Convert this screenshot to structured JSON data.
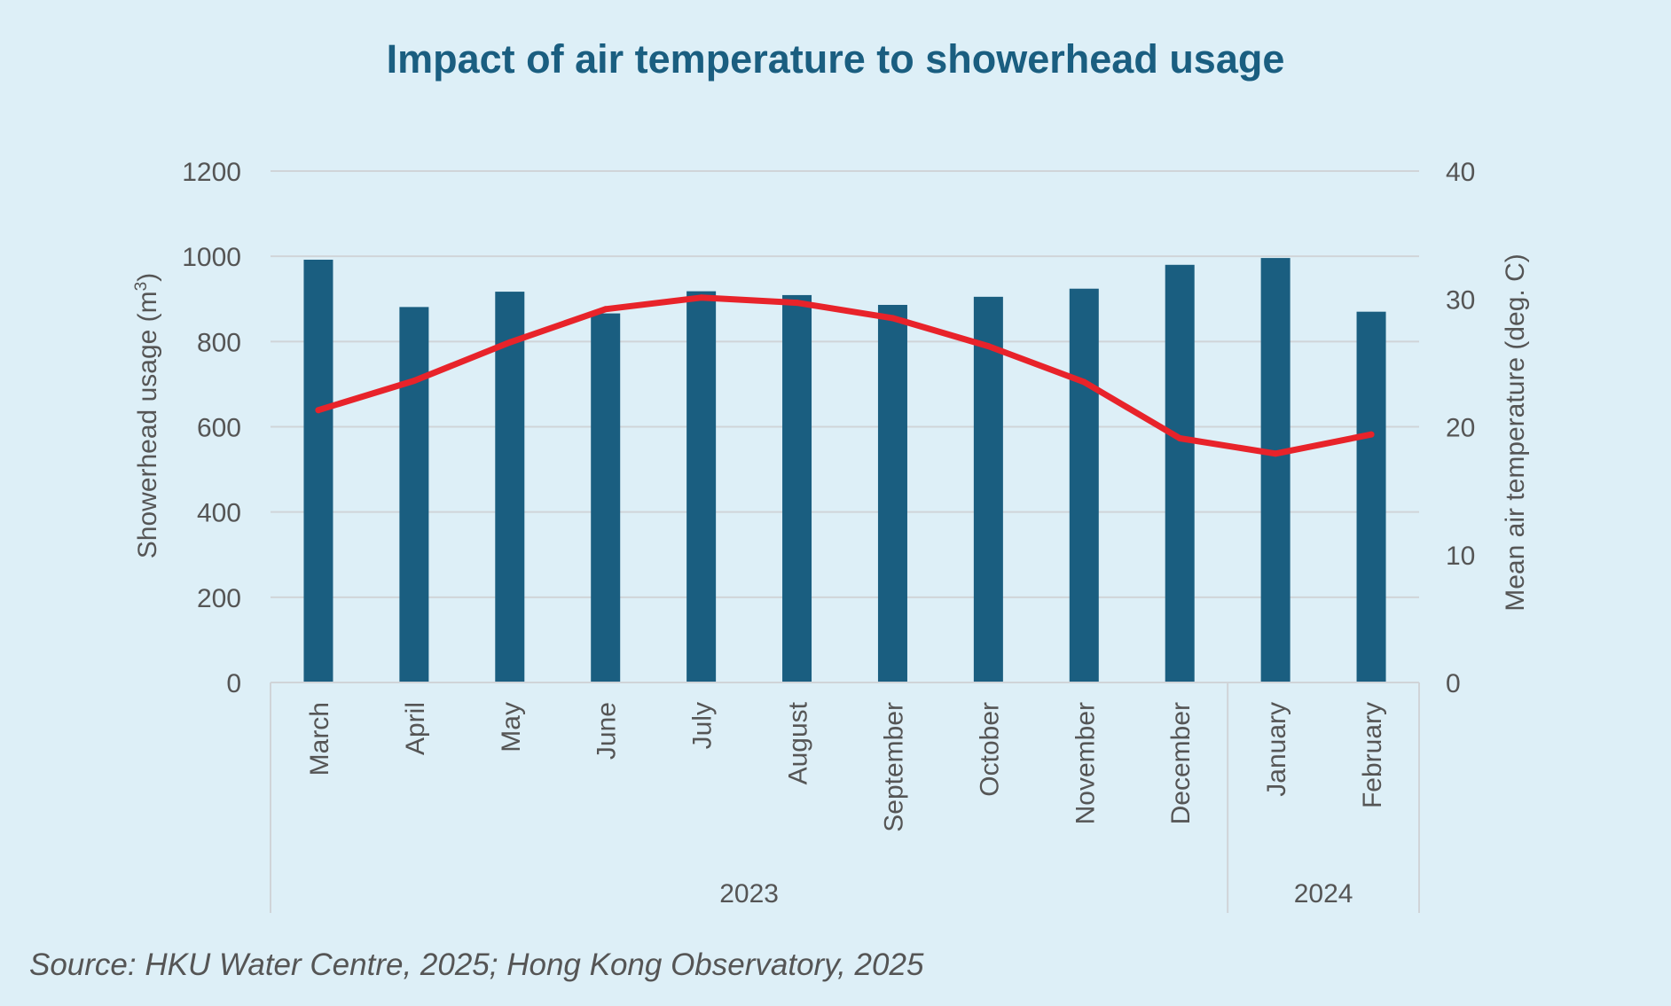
{
  "chart_data": {
    "type": "bar",
    "title": "Impact of air temperature to showerhead usage",
    "categories": [
      "March",
      "April",
      "May",
      "June",
      "July",
      "August",
      "September",
      "October",
      "November",
      "December",
      "January",
      "February"
    ],
    "category_groups": [
      {
        "label": "2023",
        "count": 10
      },
      {
        "label": "2024",
        "count": 2
      }
    ],
    "series": [
      {
        "name": "Showerhead usage",
        "type": "bar",
        "axis": "left",
        "color": "#1a5e80",
        "values": [
          992,
          881,
          917,
          866,
          918,
          909,
          886,
          905,
          924,
          980,
          996,
          870
        ]
      },
      {
        "name": "Mean air temperature",
        "type": "line",
        "axis": "right",
        "color": "#e8232a",
        "values": [
          21.3,
          23.6,
          26.6,
          29.2,
          30.1,
          29.7,
          28.5,
          26.3,
          23.5,
          19.1,
          17.9,
          19.4
        ]
      }
    ],
    "y_left": {
      "label": "Showerhead usage (m",
      "label_sup": "3",
      "label_close": ")",
      "range": [
        0,
        1200
      ],
      "ticks": [
        "0",
        "200",
        "400",
        "600",
        "800",
        "1000",
        "1200"
      ]
    },
    "y_right": {
      "label": "Mean air temperature (deg. C)",
      "range": [
        0,
        40
      ],
      "ticks": [
        "0",
        "10",
        "20",
        "30",
        "40"
      ]
    },
    "grid": true,
    "legend": "none",
    "source": "Source: HKU Water Centre, 2025; Hong Kong Observatory, 2025",
    "colors": {
      "background": "#ddeff7",
      "title": "#1a5e80",
      "bar": "#1a5e80",
      "line": "#e8232a",
      "grid": "#d0d4d8",
      "text": "#555555"
    }
  }
}
